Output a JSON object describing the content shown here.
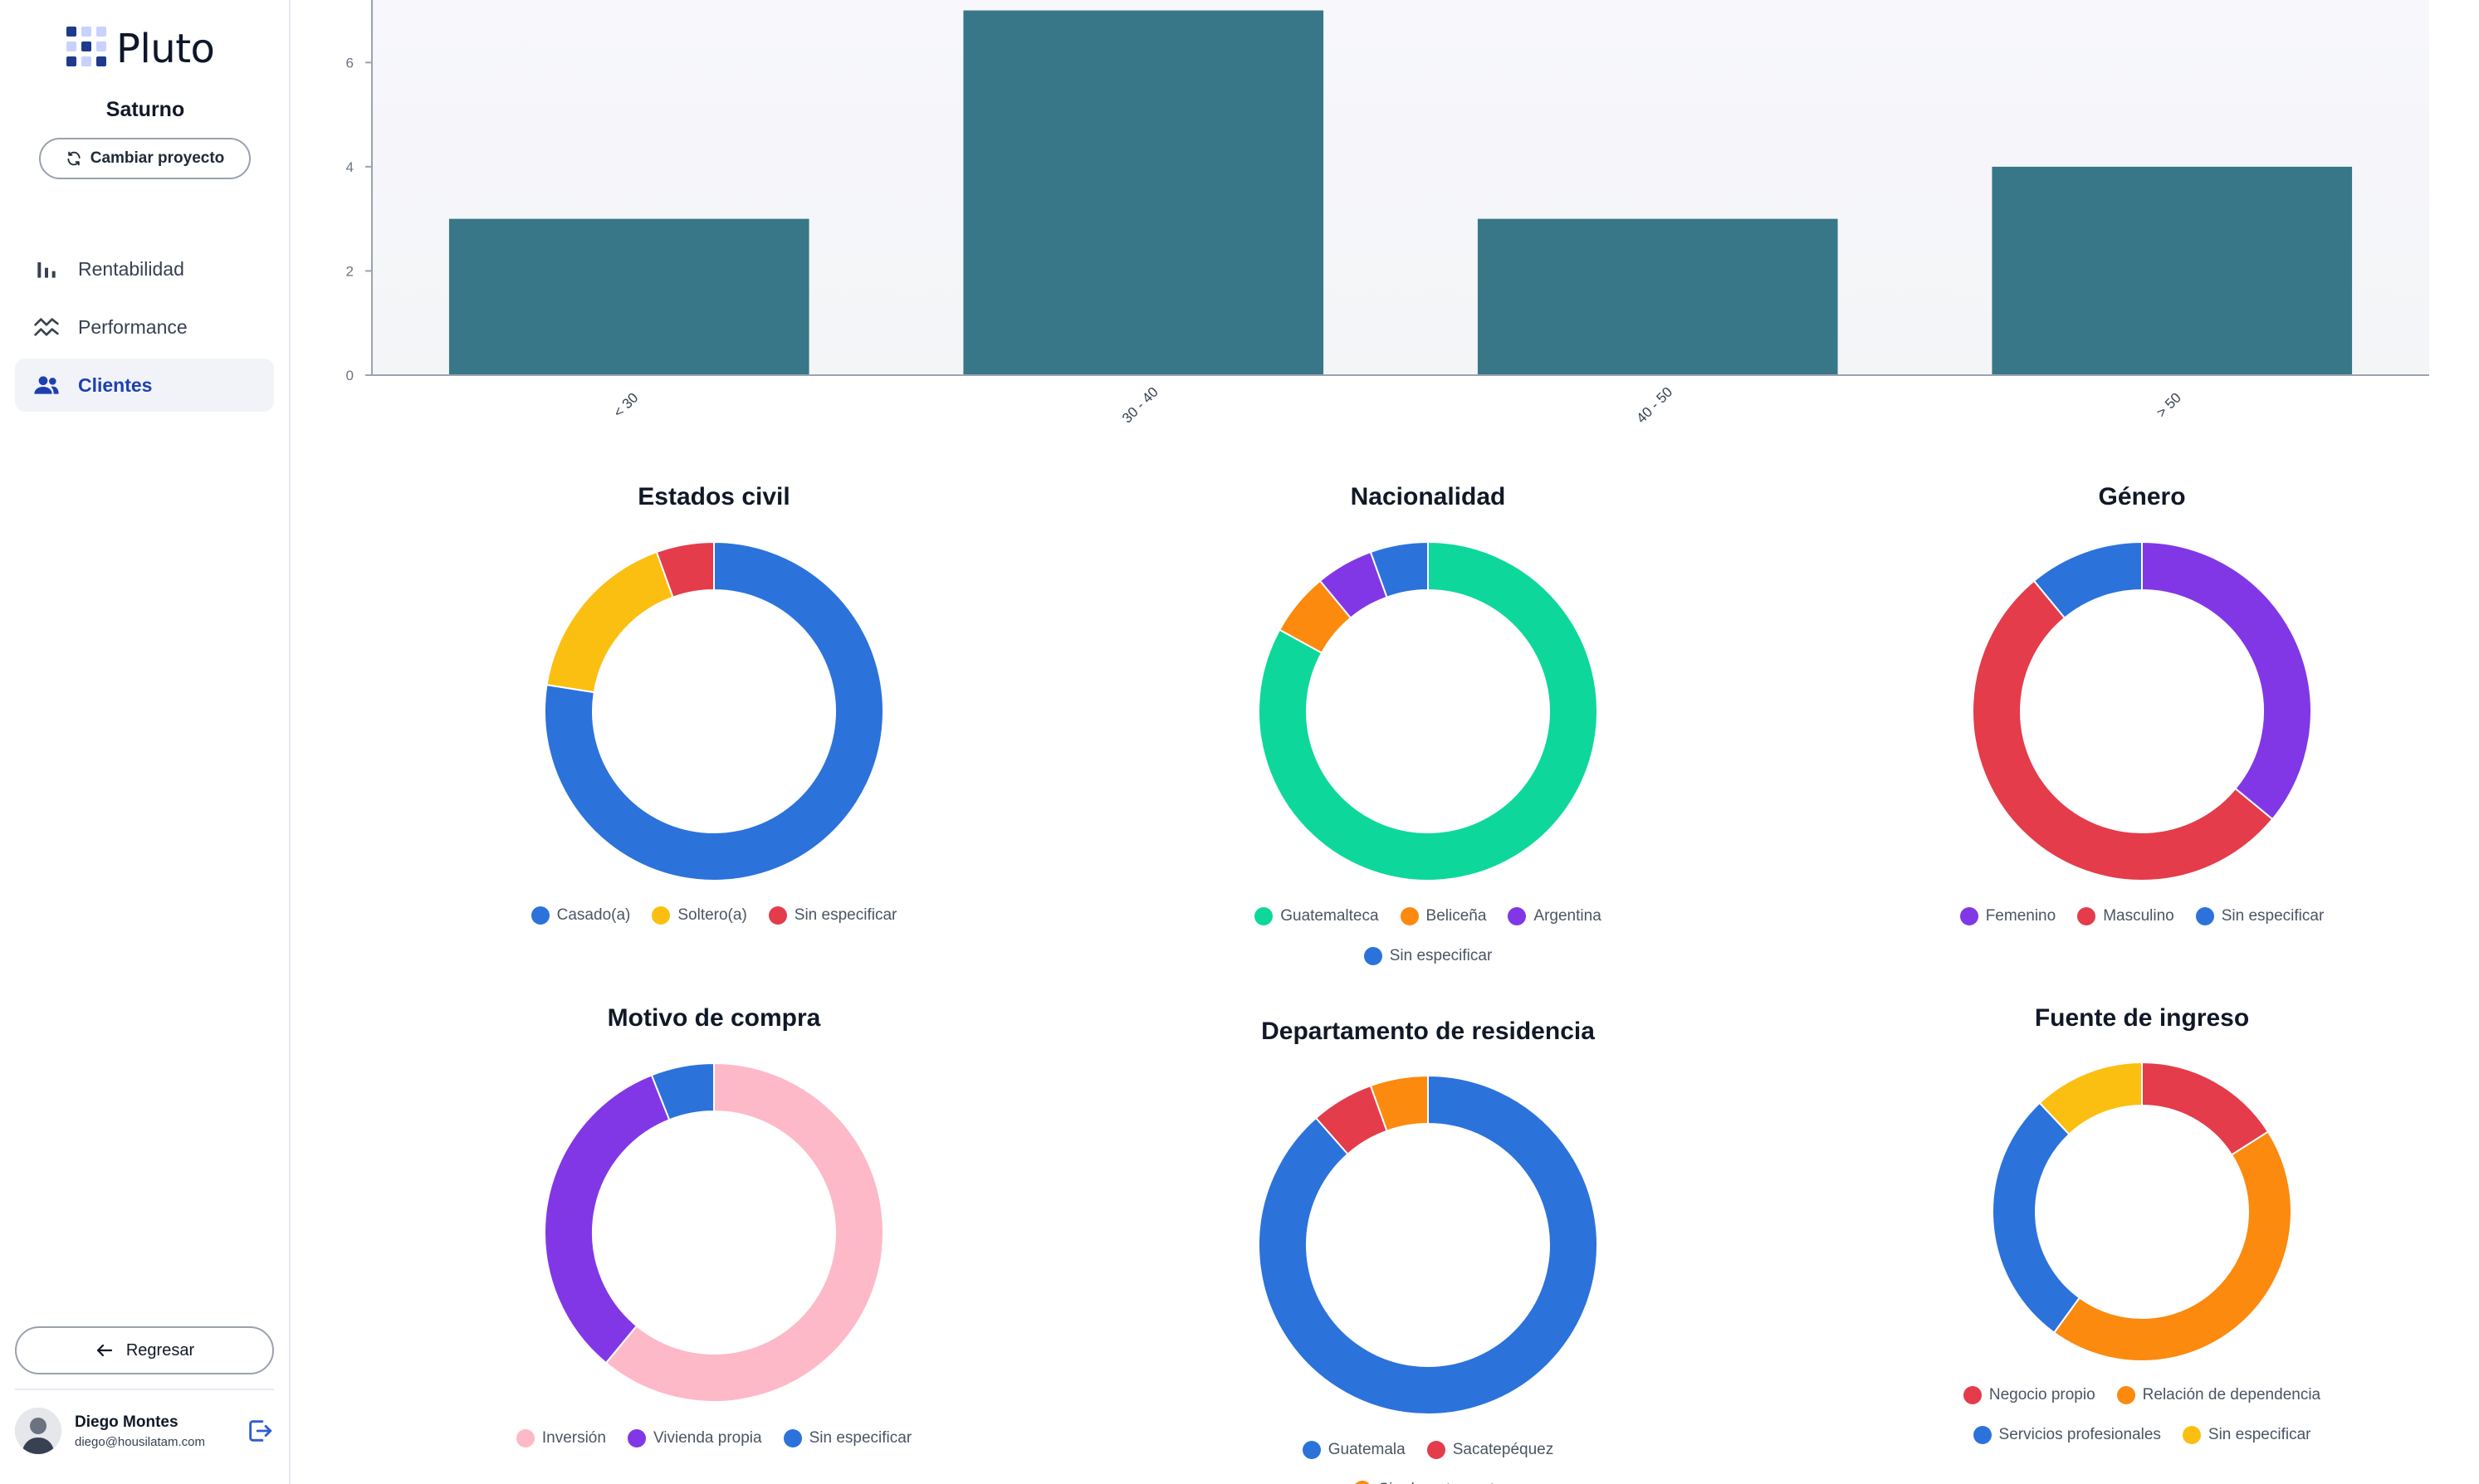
{
  "app": {
    "brand": "Pluto",
    "project": "Saturno",
    "change_project": "Cambiar proyecto"
  },
  "nav": [
    {
      "label": "Rentabilidad",
      "icon": "bar-chart-icon",
      "active": false
    },
    {
      "label": "Performance",
      "icon": "trend-icon",
      "active": false
    },
    {
      "label": "Clientes",
      "icon": "users-icon",
      "active": true
    }
  ],
  "back_label": "Regresar",
  "user": {
    "name": "Diego Montes",
    "email": "diego@housilatam.com"
  },
  "colors": {
    "bar": "#377788",
    "accent": "#1e40af"
  },
  "chart_data": [
    {
      "type": "bar",
      "categories": [
        "< 30",
        "30 - 40",
        "40 - 50",
        "> 50"
      ],
      "values": [
        3,
        7,
        3,
        4
      ],
      "yticks": [
        0,
        2,
        4,
        6
      ],
      "ylim": [
        0,
        7.2
      ],
      "xlabel": "",
      "ylabel": ""
    },
    {
      "type": "pie",
      "title": "Estados civil",
      "categories": [
        "Casado(a)",
        "Soltero(a)",
        "Sin especificar"
      ],
      "values": [
        77.5,
        17,
        5.5
      ],
      "colors": [
        "#2b72db",
        "#fbbf11",
        "#e43c4a"
      ]
    },
    {
      "type": "pie",
      "title": "Nacionalidad",
      "categories": [
        "Guatemalteca",
        "Beliceña",
        "Argentina",
        "Sin especificar"
      ],
      "values": [
        83,
        6,
        5.5,
        5.5
      ],
      "colors": [
        "#0ed79c",
        "#fb8a0e",
        "#8137e6",
        "#2b72db"
      ]
    },
    {
      "type": "pie",
      "title": "Género",
      "categories": [
        "Femenino",
        "Masculino",
        "Sin especificar"
      ],
      "values": [
        36,
        53,
        11
      ],
      "colors": [
        "#8137e6",
        "#e43c4a",
        "#2b72db"
      ]
    },
    {
      "type": "pie",
      "title": "Motivo de compra",
      "categories": [
        "Inversión",
        "Vivienda propia",
        "Sin especificar"
      ],
      "values": [
        61,
        33,
        6
      ],
      "colors": [
        "#fdb9c8",
        "#8137e6",
        "#2b72db"
      ]
    },
    {
      "type": "pie",
      "title": "Departamento de residencia",
      "categories": [
        "Guatemala",
        "Sacatepéquez",
        "Sin departamento"
      ],
      "values": [
        88.5,
        6,
        5.5
      ],
      "colors": [
        "#2b72db",
        "#e43c4a",
        "#fb8a0e"
      ]
    },
    {
      "type": "pie",
      "title": "Fuente de ingreso",
      "categories": [
        "Negocio propio",
        "Relación de dependencia",
        "Servicios profesionales",
        "Sin especificar"
      ],
      "values": [
        16,
        44,
        28,
        12
      ],
      "colors": [
        "#e43c4a",
        "#fb8a0e",
        "#2b72db",
        "#fbbf11"
      ]
    }
  ]
}
